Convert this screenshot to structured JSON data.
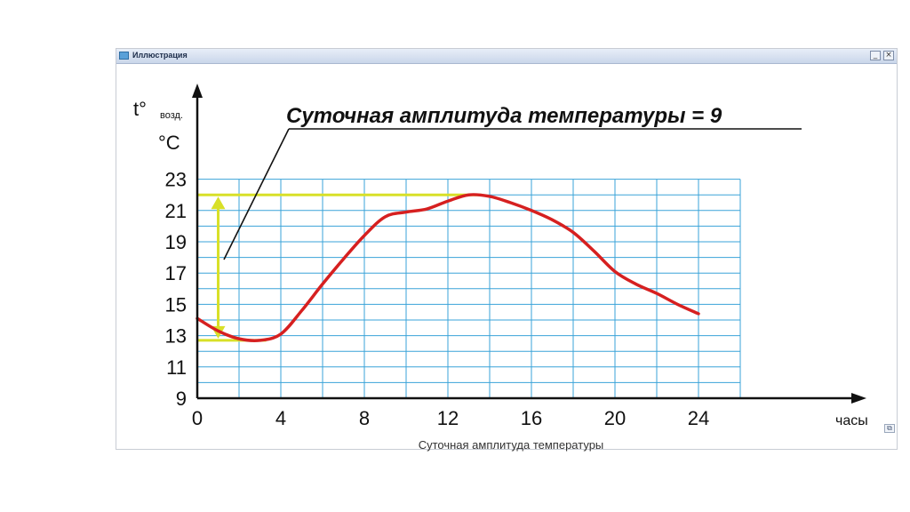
{
  "window": {
    "title": "Иллюстрация",
    "minimize_label": "_",
    "close_label": "×",
    "resize_label": "⧉"
  },
  "colors": {
    "grid": "#3aa3d8",
    "curve": "#d62020",
    "amplitude": "#d8e028",
    "axis": "#111111"
  },
  "chart_data": {
    "type": "line",
    "title": "Суточная амплитуда температуры = 9",
    "caption": "Суточная амплитуда температуры",
    "xlabel": "часы",
    "ylabel_main": "t°",
    "ylabel_sub": "возд.",
    "yunit": "°C",
    "x_ticks": [
      0,
      4,
      8,
      12,
      16,
      20,
      24
    ],
    "y_ticks": [
      9,
      11,
      13,
      15,
      17,
      19,
      21,
      23
    ],
    "xlim": [
      0,
      26
    ],
    "ylim": [
      9,
      24
    ],
    "grid": true,
    "series": [
      {
        "x": [
          0,
          1,
          2,
          3,
          4,
          5,
          6,
          7,
          8,
          9,
          10,
          11,
          12,
          13,
          14,
          15,
          16,
          17,
          18,
          19,
          20,
          21,
          22,
          23,
          24
        ],
        "y": [
          14.1,
          13.3,
          12.8,
          12.7,
          13.1,
          14.6,
          16.3,
          17.9,
          19.4,
          20.6,
          20.9,
          21.1,
          21.6,
          22.0,
          21.9,
          21.5,
          21.0,
          20.4,
          19.6,
          18.4,
          17.1,
          16.3,
          15.7,
          15.0,
          14.4
        ]
      }
    ],
    "amplitude": {
      "min": 12.7,
      "max": 22.0,
      "x": 1
    }
  }
}
